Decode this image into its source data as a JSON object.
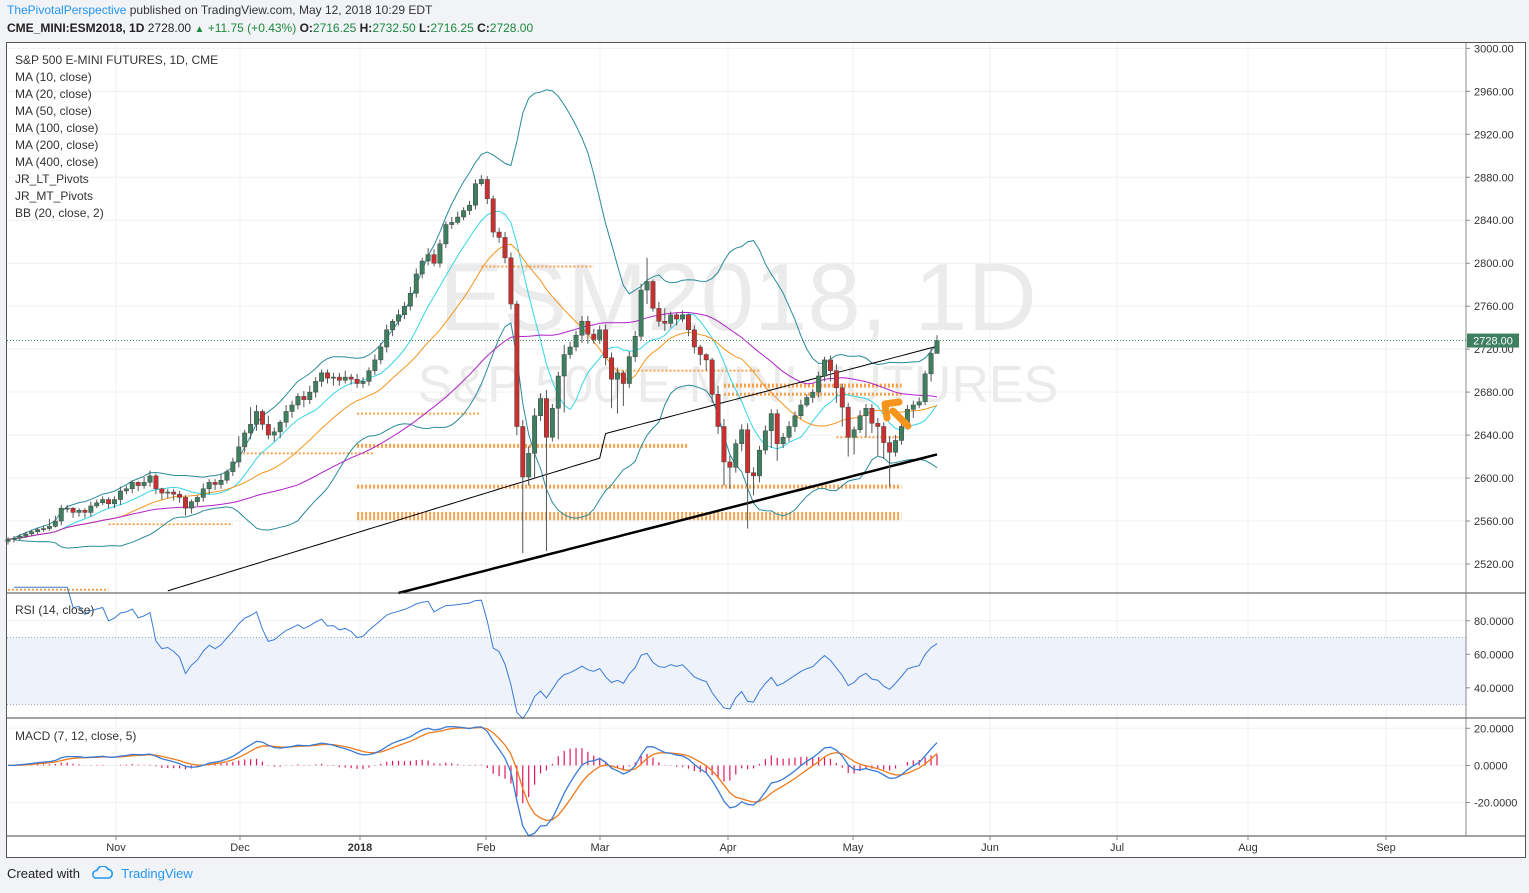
{
  "header": {
    "author": "ThePivotalPerspective",
    "published": "published on TradingView.com, May 12, 2018 10:29 EDT",
    "symbol": "CME_MINI:ESM2018, 1D",
    "last": "2728.00",
    "change_arrow": "▲",
    "change": "+11.75 (+0.43%)",
    "o_label": "O:",
    "o": "2716.25",
    "h_label": "H:",
    "h": "2732.50",
    "l_label": "L:",
    "l": "2716.25",
    "c_label": "C:",
    "c": "2728.00"
  },
  "legend": [
    "S&P 500 E-MINI FUTURES, 1D, CME",
    "MA (10, close)",
    "MA (20, close)",
    "MA (50, close)",
    "MA (100, close)",
    "MA (200, close)",
    "MA (400, close)",
    "JR_LT_Pivots",
    "JR_MT_Pivots",
    "BB (20, close, 2)"
  ],
  "watermark": {
    "line1": "ESM2018, 1D",
    "line2": "S&P 500 E-MINI FUTURES"
  },
  "footer": {
    "created": "Created with",
    "brand": "TradingView"
  },
  "colors": {
    "up": "#3d7f5f",
    "down": "#cc2f2f",
    "bb": "#2a8a9a",
    "ma10": "#33d6e8",
    "ma20": "#f5951d",
    "ma50": "#b022c8",
    "ma100": "#000000",
    "pivot": "#f5a04a",
    "rsi": "#3a7bd5",
    "macd": "#3a7bd5",
    "signal": "#f07a1c",
    "hist": "#e0185a",
    "arrow": "#f7941d"
  },
  "chart_data": [
    {
      "type": "candlestick",
      "title": "S&P 500 E-MINI FUTURES, 1D, CME",
      "x_ticks": [
        "Nov",
        "Dec",
        "2018",
        "Feb",
        "Mar",
        "Apr",
        "May",
        "Jun",
        "Jul",
        "Aug",
        "Sep"
      ],
      "y_ticks": [
        "3000.00",
        "2960.00",
        "2920.00",
        "2880.00",
        "2840.00",
        "2800.00",
        "2760.00",
        "2720.00",
        "2680.00",
        "2640.00",
        "2600.00",
        "2560.00",
        "2520.00"
      ],
      "ylim": [
        2493,
        3005
      ],
      "last_price_label": "2728.00",
      "closes": [
        2543,
        2544,
        2546,
        2548,
        2550,
        2552,
        2553,
        2555,
        2560,
        2572,
        2572,
        2568,
        2570,
        2568,
        2574,
        2577,
        2580,
        2576,
        2580,
        2588,
        2590,
        2596,
        2593,
        2596,
        2602,
        2590,
        2586,
        2587,
        2585,
        2582,
        2572,
        2578,
        2582,
        2590,
        2596,
        2594,
        2598,
        2606,
        2615,
        2629,
        2642,
        2650,
        2662,
        2650,
        2640,
        2643,
        2652,
        2662,
        2668,
        2676,
        2673,
        2680,
        2690,
        2698,
        2693,
        2694,
        2691,
        2694,
        2692,
        2688,
        2690,
        2700,
        2710,
        2722,
        2738,
        2746,
        2752,
        2760,
        2772,
        2790,
        2802,
        2808,
        2800,
        2818,
        2836,
        2838,
        2843,
        2849,
        2854,
        2874,
        2878,
        2860,
        2829,
        2824,
        2805,
        2762,
        2648,
        2601,
        2623,
        2658,
        2674,
        2638,
        2665,
        2695,
        2715,
        2722,
        2733,
        2746,
        2734,
        2729,
        2738,
        2712,
        2692,
        2698,
        2688,
        2713,
        2732,
        2775,
        2783,
        2758,
        2746,
        2744,
        2752,
        2748,
        2752,
        2738,
        2722,
        2715,
        2710,
        2678,
        2648,
        2615,
        2610,
        2632,
        2645,
        2605,
        2602,
        2626,
        2644,
        2660,
        2632,
        2638,
        2648,
        2658,
        2668,
        2675,
        2680,
        2695,
        2710,
        2700,
        2684,
        2666,
        2638,
        2645,
        2658,
        2665,
        2651,
        2648,
        2633,
        2624,
        2635,
        2648,
        2664,
        2668,
        2671,
        2697,
        2716,
        2728
      ],
      "highs": [
        2545,
        2546,
        2548,
        2550,
        2552,
        2554,
        2556,
        2562,
        2565,
        2575,
        2575,
        2573,
        2572,
        2572,
        2578,
        2580,
        2583,
        2582,
        2583,
        2592,
        2593,
        2598,
        2597,
        2601,
        2607,
        2604,
        2591,
        2590,
        2590,
        2588,
        2584,
        2580,
        2584,
        2595,
        2599,
        2599,
        2604,
        2608,
        2619,
        2639,
        2645,
        2666,
        2668,
        2664,
        2658,
        2647,
        2654,
        2668,
        2672,
        2679,
        2681,
        2686,
        2694,
        2701,
        2701,
        2698,
        2698,
        2700,
        2697,
        2697,
        2694,
        2703,
        2715,
        2726,
        2743,
        2748,
        2757,
        2764,
        2778,
        2795,
        2805,
        2814,
        2813,
        2822,
        2839,
        2843,
        2848,
        2852,
        2858,
        2878,
        2882,
        2881,
        2863,
        2833,
        2829,
        2810,
        2765,
        2654,
        2630,
        2665,
        2679,
        2682,
        2669,
        2699,
        2724,
        2727,
        2737,
        2751,
        2751,
        2739,
        2742,
        2743,
        2717,
        2703,
        2700,
        2718,
        2737,
        2781,
        2805,
        2785,
        2764,
        2758,
        2755,
        2754,
        2756,
        2753,
        2742,
        2724,
        2716,
        2712,
        2686,
        2655,
        2621,
        2636,
        2650,
        2651,
        2610,
        2630,
        2649,
        2664,
        2664,
        2642,
        2653,
        2662,
        2673,
        2678,
        2683,
        2699,
        2713,
        2714,
        2706,
        2688,
        2670,
        2648,
        2663,
        2669,
        2669,
        2656,
        2652,
        2639,
        2640,
        2653,
        2668,
        2672,
        2675,
        2700,
        2722,
        2733
      ],
      "lows": [
        2538,
        2540,
        2542,
        2544,
        2546,
        2548,
        2550,
        2551,
        2554,
        2556,
        2568,
        2563,
        2564,
        2563,
        2564,
        2572,
        2575,
        2572,
        2572,
        2575,
        2585,
        2586,
        2588,
        2590,
        2592,
        2585,
        2580,
        2581,
        2579,
        2577,
        2565,
        2567,
        2574,
        2578,
        2585,
        2589,
        2590,
        2595,
        2602,
        2610,
        2624,
        2636,
        2644,
        2645,
        2636,
        2634,
        2637,
        2647,
        2656,
        2664,
        2666,
        2669,
        2675,
        2685,
        2688,
        2686,
        2686,
        2688,
        2687,
        2684,
        2684,
        2686,
        2696,
        2706,
        2717,
        2732,
        2742,
        2748,
        2756,
        2768,
        2786,
        2798,
        2797,
        2796,
        2814,
        2832,
        2836,
        2840,
        2845,
        2850,
        2872,
        2855,
        2824,
        2819,
        2800,
        2757,
        2640,
        2530,
        2593,
        2600,
        2653,
        2532,
        2634,
        2636,
        2661,
        2711,
        2718,
        2726,
        2725,
        2725,
        2725,
        2705,
        2665,
        2660,
        2667,
        2684,
        2708,
        2728,
        2762,
        2755,
        2741,
        2737,
        2740,
        2742,
        2745,
        2732,
        2716,
        2705,
        2700,
        2670,
        2641,
        2593,
        2590,
        2605,
        2625,
        2553,
        2584,
        2596,
        2622,
        2628,
        2616,
        2628,
        2634,
        2643,
        2655,
        2666,
        2670,
        2675,
        2690,
        2690,
        2670,
        2648,
        2620,
        2622,
        2642,
        2638,
        2642,
        2621,
        2618,
        2592,
        2620,
        2631,
        2645,
        2656,
        2665,
        2668,
        2690,
        2716
      ]
    },
    {
      "type": "line",
      "title": "RSI (14, close)",
      "y_ticks": [
        "80.0000",
        "60.0000",
        "40.0000"
      ],
      "ylim": [
        22,
        96
      ],
      "band": [
        30,
        70
      ]
    },
    {
      "type": "line",
      "title": "MACD (7, 12, close, 5)",
      "y_ticks": [
        "20.0000",
        "0.0000",
        "-20.0000"
      ],
      "ylim": [
        -38,
        25
      ],
      "series": [
        "MACD",
        "Signal",
        "Histogram"
      ]
    }
  ]
}
